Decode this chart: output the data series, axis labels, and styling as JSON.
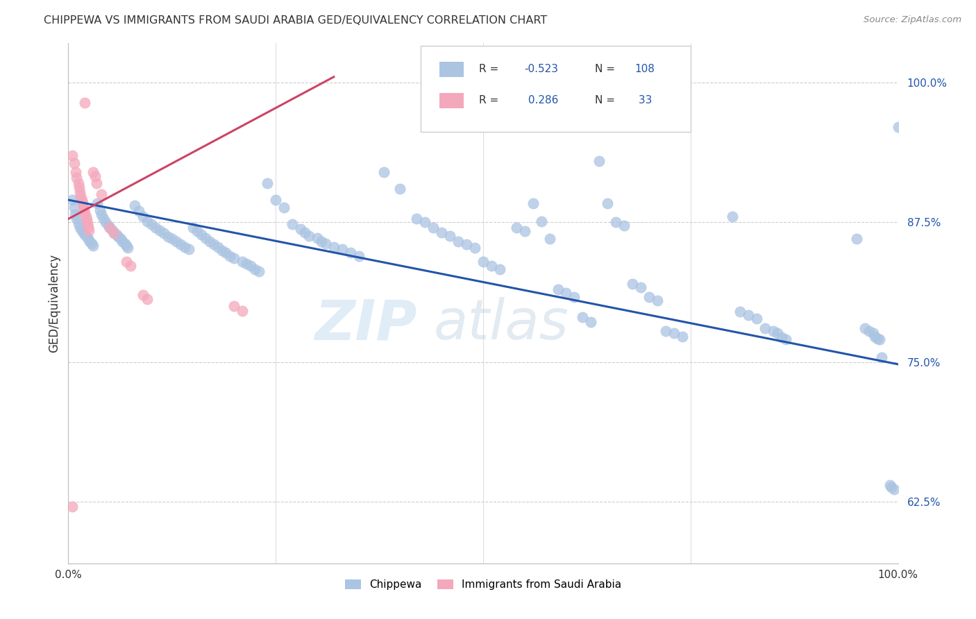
{
  "title": "CHIPPEWA VS IMMIGRANTS FROM SAUDI ARABIA GED/EQUIVALENCY CORRELATION CHART",
  "source": "Source: ZipAtlas.com",
  "ylabel": "GED/Equivalency",
  "legend_r1": "-0.523",
  "legend_n1": "108",
  "legend_r2": " 0.286",
  "legend_n2": " 33",
  "blue_color": "#aac4e2",
  "pink_color": "#f4a8bc",
  "blue_line_color": "#2255aa",
  "pink_line_color": "#cc4466",
  "ytick_vals": [
    0.625,
    0.75,
    0.875,
    1.0
  ],
  "ytick_labels": [
    "62.5%",
    "75.0%",
    "87.5%",
    "100.0%"
  ],
  "ymin": 0.57,
  "ymax": 1.035,
  "xmin": 0.0,
  "xmax": 1.0,
  "blue_trend_x": [
    0.0,
    1.0
  ],
  "blue_trend_y": [
    0.895,
    0.748
  ],
  "pink_trend_x": [
    0.0,
    0.32
  ],
  "pink_trend_y": [
    0.878,
    1.005
  ],
  "watermark_zip": "ZIP",
  "watermark_atlas": "atlas"
}
